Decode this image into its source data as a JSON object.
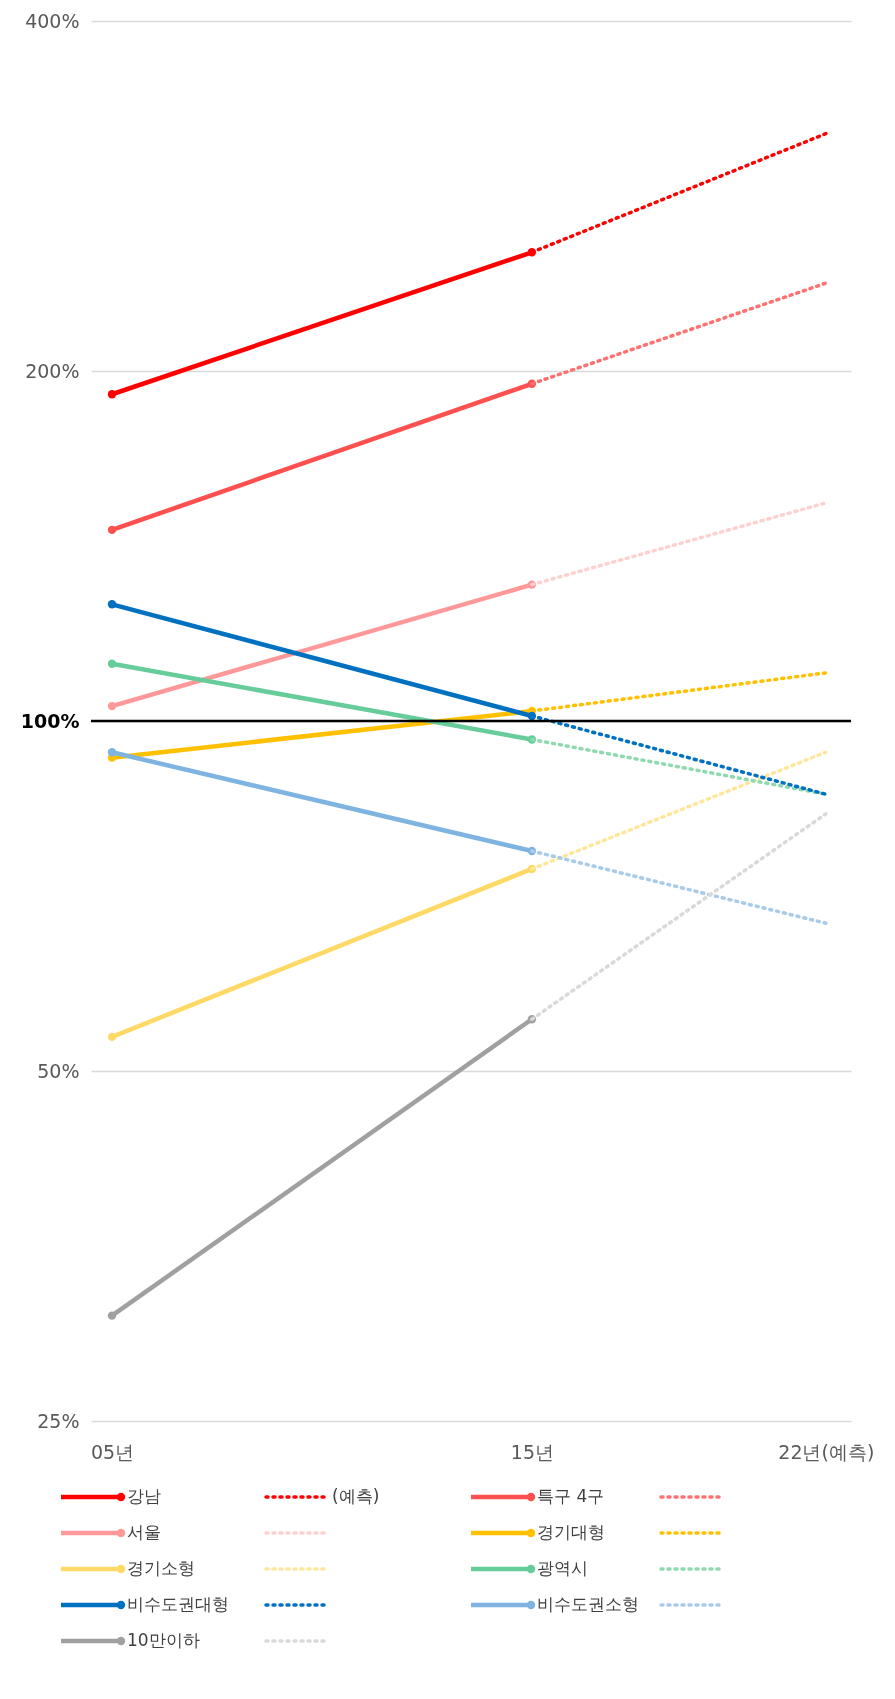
{
  "chart_data": {
    "type": "line",
    "x": [
      5,
      15,
      22
    ],
    "xlim": [
      4.5,
      22.6
    ],
    "xticks": [
      {
        "value": 5,
        "label": "05년"
      },
      {
        "value": 15,
        "label": "15년"
      },
      {
        "value": 22,
        "label": "22년(예측)"
      }
    ],
    "ylim": [
      25,
      400
    ],
    "yticks": [
      {
        "value": 25,
        "label": "25%"
      },
      {
        "value": 50,
        "label": "50%"
      },
      {
        "value": 100,
        "label": "100%"
      },
      {
        "value": 200,
        "label": "200%"
      },
      {
        "value": 400,
        "label": "400%"
      }
    ],
    "log": "y",
    "grid": "y",
    "legend": "bottom",
    "marker": "circle",
    "line_style": "solid",
    "ref_lines": [
      {
        "axis": "y",
        "value": 100,
        "color": "#000000"
      }
    ],
    "series": [
      {
        "name": "강남",
        "color": "#ff0000",
        "values": [
          191,
          253,
          null
        ]
      },
      {
        "name": "(예측)",
        "color": "#ff0000",
        "values": [
          null,
          253,
          320
        ],
        "line_style": "dotted",
        "marker": "none"
      },
      {
        "name": "특구 4구",
        "color": "#ff5050",
        "values": [
          146,
          195,
          null
        ]
      },
      {
        "color": "#ff7070",
        "values": [
          null,
          195,
          238
        ],
        "line_style": "dotted",
        "marker": "none"
      },
      {
        "name": "서울",
        "color": "#ff9999",
        "values": [
          103,
          131,
          null
        ]
      },
      {
        "color": "#ffd0d0",
        "values": [
          null,
          131,
          154
        ],
        "line_style": "dotted",
        "marker": "none"
      },
      {
        "name": "경기대형",
        "color": "#ffc000",
        "values": [
          93,
          102,
          null
        ]
      },
      {
        "color": "#ffc000",
        "values": [
          null,
          102,
          110
        ],
        "line_style": "dotted",
        "marker": "none"
      },
      {
        "name": "경기소형",
        "color": "#ffd966",
        "values": [
          53.5,
          74.6,
          null
        ]
      },
      {
        "color": "#ffe699",
        "values": [
          null,
          74.6,
          94
        ],
        "line_style": "dotted",
        "marker": "none"
      },
      {
        "name": "광역시",
        "color": "#66cc99",
        "values": [
          112,
          96.4,
          null
        ]
      },
      {
        "color": "#8fd9b0",
        "values": [
          null,
          96.4,
          86.5
        ],
        "line_style": "dotted",
        "marker": "none"
      },
      {
        "name": "비수도권대형",
        "color": "#0070c0",
        "values": [
          126,
          101,
          null
        ]
      },
      {
        "color": "#0070c0",
        "values": [
          null,
          101,
          86.5
        ],
        "line_style": "dotted",
        "marker": "none"
      },
      {
        "name": "비수도권소형",
        "color": "#7fb4e0",
        "values": [
          94,
          77.3,
          null
        ]
      },
      {
        "color": "#a8cbea",
        "values": [
          null,
          77.3,
          67
        ],
        "line_style": "dotted",
        "marker": "none"
      },
      {
        "name": "10만이하",
        "color": "#a0a0a0",
        "values": [
          30.8,
          55.4,
          null
        ]
      },
      {
        "color": "#d9d9d9",
        "values": [
          null,
          55.4,
          83.2
        ],
        "line_style": "dotted",
        "marker": "none"
      }
    ]
  }
}
